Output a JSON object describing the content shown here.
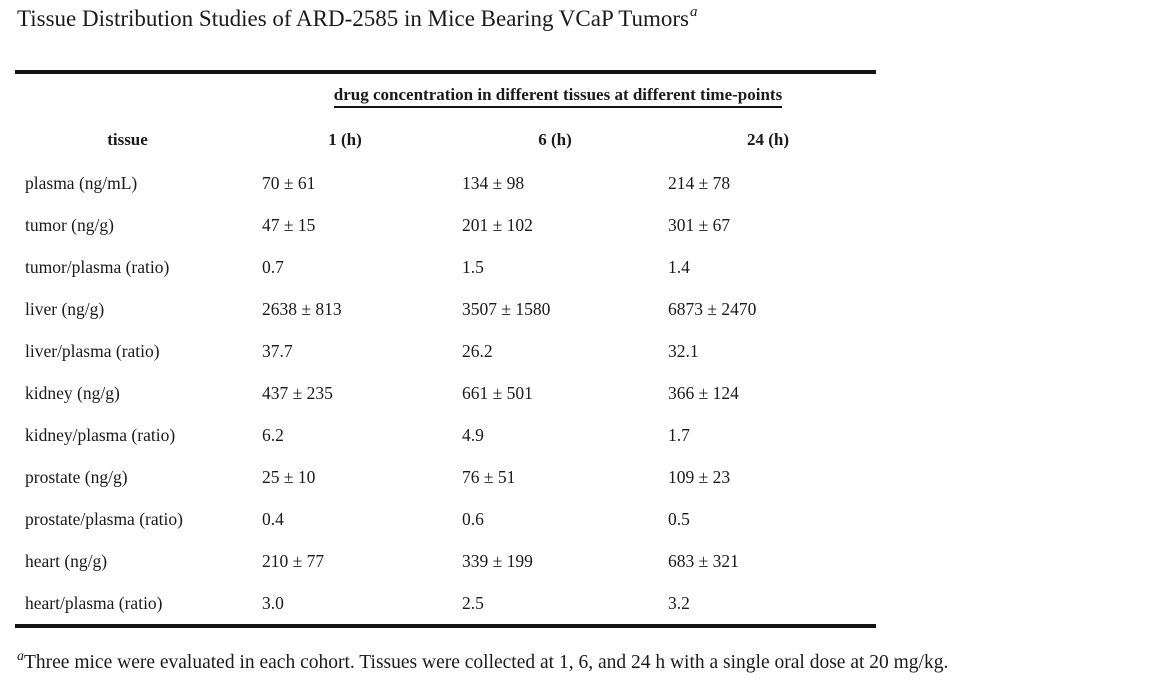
{
  "title": {
    "text": "Tissue Distribution Studies of ARD-2585 in Mice Bearing VCaP Tumors",
    "superscript": "a"
  },
  "table": {
    "span_header": "drug concentration in different tissues at different time-points",
    "columns": [
      "tissue",
      "1 (h)",
      "6 (h)",
      "24 (h)"
    ],
    "rows": [
      {
        "tissue": "plasma (ng/mL)",
        "values": [
          "70 ± 61",
          "134 ± 98",
          "214 ± 78"
        ]
      },
      {
        "tissue": "tumor (ng/g)",
        "values": [
          "47 ± 15",
          "201 ± 102",
          "301 ± 67"
        ]
      },
      {
        "tissue": "tumor/plasma (ratio)",
        "values": [
          "0.7",
          "1.5",
          "1.4"
        ]
      },
      {
        "tissue": "liver (ng/g)",
        "values": [
          "2638 ± 813",
          "3507 ± 1580",
          "6873 ± 2470"
        ]
      },
      {
        "tissue": "liver/plasma (ratio)",
        "values": [
          "37.7",
          "26.2",
          "32.1"
        ]
      },
      {
        "tissue": "kidney (ng/g)",
        "values": [
          "437 ± 235",
          "661 ± 501",
          "366 ± 124"
        ]
      },
      {
        "tissue": "kidney/plasma (ratio)",
        "values": [
          "6.2",
          "4.9",
          "1.7"
        ]
      },
      {
        "tissue": "prostate (ng/g)",
        "values": [
          "25 ± 10",
          "76 ± 51",
          "109 ± 23"
        ]
      },
      {
        "tissue": "prostate/plasma (ratio)",
        "values": [
          "0.4",
          "0.6",
          "0.5"
        ]
      },
      {
        "tissue": "heart (ng/g)",
        "values": [
          "210 ± 77",
          "339 ± 199",
          "683 ± 321"
        ]
      },
      {
        "tissue": "heart/plasma (ratio)",
        "values": [
          "3.0",
          "2.5",
          "3.2"
        ]
      }
    ]
  },
  "footnote": {
    "marker": "a",
    "text": "Three mice were evaluated in each cohort. Tissues were collected at 1, 6, and 24 h with a single oral dose at 20 mg/kg."
  },
  "chart_data": {
    "type": "table",
    "title": "Tissue Distribution Studies of ARD-2585 in Mice Bearing VCaP Tumors",
    "columns": [
      "tissue",
      "1 (h)",
      "6 (h)",
      "24 (h)"
    ],
    "rows": [
      [
        "plasma (ng/mL)",
        "70 ± 61",
        "134 ± 98",
        "214 ± 78"
      ],
      [
        "tumor (ng/g)",
        "47 ± 15",
        "201 ± 102",
        "301 ± 67"
      ],
      [
        "tumor/plasma (ratio)",
        "0.7",
        "1.5",
        "1.4"
      ],
      [
        "liver (ng/g)",
        "2638 ± 813",
        "3507 ± 1580",
        "6873 ± 2470"
      ],
      [
        "liver/plasma (ratio)",
        "37.7",
        "26.2",
        "32.1"
      ],
      [
        "kidney (ng/g)",
        "437 ± 235",
        "661 ± 501",
        "366 ± 124"
      ],
      [
        "kidney/plasma (ratio)",
        "6.2",
        "4.9",
        "1.7"
      ],
      [
        "prostate (ng/g)",
        "25 ± 10",
        "76 ± 51",
        "109 ± 23"
      ],
      [
        "prostate/plasma (ratio)",
        "0.4",
        "0.6",
        "0.5"
      ],
      [
        "heart (ng/g)",
        "210 ± 77",
        "339 ± 199",
        "683 ± 321"
      ],
      [
        "heart/plasma (ratio)",
        "3.0",
        "2.5",
        "3.2"
      ]
    ]
  }
}
